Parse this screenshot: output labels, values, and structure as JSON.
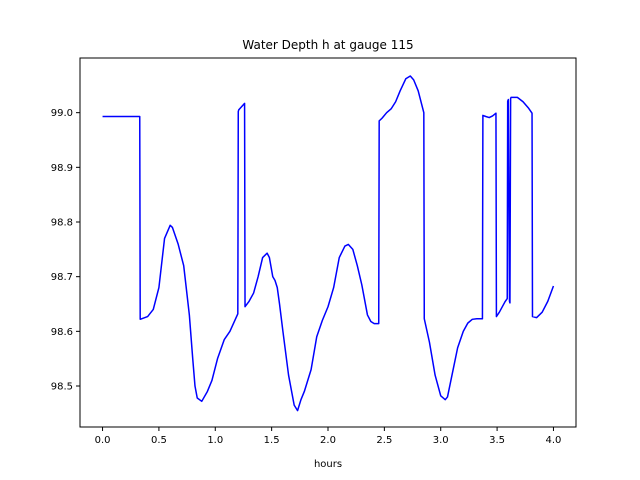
{
  "chart_data": {
    "type": "line",
    "title": "Water Depth h at gauge 115",
    "xlabel": "hours",
    "ylabel": "",
    "xlim": [
      -0.2,
      4.2
    ],
    "ylim": [
      98.425,
      99.1
    ],
    "xticks": [
      0.0,
      0.5,
      1.0,
      1.5,
      2.0,
      2.5,
      3.0,
      3.5,
      4.0
    ],
    "xtick_labels": [
      "0.0",
      "0.5",
      "1.0",
      "1.5",
      "2.0",
      "2.5",
      "3.0",
      "3.5",
      "4.0"
    ],
    "yticks": [
      98.5,
      98.6,
      98.7,
      98.8,
      98.9,
      99.0
    ],
    "ytick_labels": [
      "98.5",
      "98.6",
      "98.7",
      "98.8",
      "98.9",
      "99.0"
    ],
    "grid": false,
    "series": [
      {
        "color": "#0000ff",
        "x": [
          0.0,
          0.33,
          0.334,
          0.4,
          0.45,
          0.5,
          0.55,
          0.6,
          0.62,
          0.67,
          0.72,
          0.77,
          0.8,
          0.82,
          0.84,
          0.88,
          0.93,
          0.97,
          1.02,
          1.08,
          1.13,
          1.2,
          1.204,
          1.208,
          1.26,
          1.264,
          1.3,
          1.34,
          1.38,
          1.42,
          1.46,
          1.48,
          1.51,
          1.53,
          1.55,
          1.57,
          1.6,
          1.65,
          1.7,
          1.73,
          1.76,
          1.79,
          1.85,
          1.9,
          1.95,
          2.0,
          2.05,
          2.1,
          2.15,
          2.18,
          2.22,
          2.26,
          2.3,
          2.35,
          2.38,
          2.41,
          2.45,
          2.454,
          2.48,
          2.52,
          2.56,
          2.6,
          2.64,
          2.69,
          2.73,
          2.76,
          2.8,
          2.85,
          2.854,
          2.9,
          2.95,
          3.0,
          3.04,
          3.06,
          3.1,
          3.15,
          3.2,
          3.24,
          3.28,
          3.32,
          3.37,
          3.374,
          3.4,
          3.43,
          3.46,
          3.49,
          3.494,
          3.52,
          3.57,
          3.59,
          3.594,
          3.6,
          3.61,
          3.614,
          3.62,
          3.624,
          3.68,
          3.73,
          3.78,
          3.81,
          3.814,
          3.85,
          3.9,
          3.95,
          4.0
        ],
        "y": [
          98.993,
          98.993,
          98.622,
          98.627,
          98.64,
          98.68,
          98.77,
          98.794,
          98.79,
          98.76,
          98.72,
          98.63,
          98.55,
          98.5,
          98.478,
          98.472,
          98.49,
          98.51,
          98.55,
          98.585,
          98.6,
          98.632,
          99.002,
          99.005,
          99.017,
          98.645,
          98.655,
          98.67,
          98.7,
          98.735,
          98.743,
          98.735,
          98.7,
          98.693,
          98.68,
          98.65,
          98.6,
          98.52,
          98.465,
          98.455,
          98.475,
          98.49,
          98.53,
          98.59,
          98.62,
          98.645,
          98.68,
          98.735,
          98.756,
          98.759,
          98.75,
          98.72,
          98.685,
          98.63,
          98.618,
          98.614,
          98.614,
          98.985,
          98.99,
          99.0,
          99.007,
          99.02,
          99.04,
          99.062,
          99.067,
          99.06,
          99.04,
          99.0,
          98.623,
          98.58,
          98.52,
          98.482,
          98.475,
          98.48,
          98.52,
          98.57,
          98.6,
          98.615,
          98.622,
          98.623,
          98.623,
          98.995,
          98.993,
          98.991,
          98.994,
          98.999,
          98.627,
          98.635,
          98.654,
          98.66,
          99.021,
          99.024,
          98.655,
          98.652,
          99.026,
          99.028,
          99.028,
          99.02,
          99.008,
          98.999,
          98.627,
          98.625,
          98.635,
          98.655,
          98.683
        ]
      }
    ]
  }
}
